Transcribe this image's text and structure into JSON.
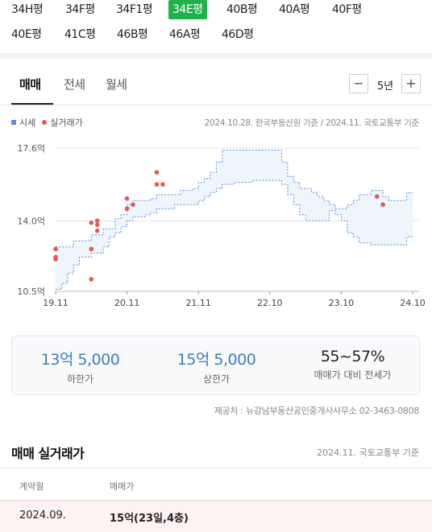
{
  "size_tabs": [
    "34H평",
    "34F평",
    "34F1평",
    "34E평",
    "40B평",
    "40A평",
    "40F평",
    "40E평",
    "41C평",
    "46B평",
    "46A평",
    "46D평"
  ],
  "active_size_tab": "34E평",
  "deal_tabs": [
    "매매",
    "전세",
    "월세"
  ],
  "active_deal_tab": "매매",
  "period": {
    "minus": "−",
    "label": "5년",
    "plus": "+"
  },
  "legend": {
    "lease": "시세",
    "trade": "실거래가"
  },
  "chart_source": "2024.10.28. 한국부동산원 기준 / 2024.11. 국토교통부 기준",
  "chart_data": {
    "type": "area",
    "title": "",
    "xlabel": "",
    "ylabel": "",
    "x_ticks": [
      "19.11",
      "20.11",
      "21.11",
      "22.10",
      "23.10",
      "24.10"
    ],
    "y_ticks": [
      "10.5억",
      "14.0억",
      "17.6억"
    ],
    "ylim": [
      10.5,
      17.6
    ],
    "xlim": [
      0,
      60
    ],
    "grid": true,
    "series": [
      {
        "name": "시세",
        "color": "#5b8dd6",
        "upper": [
          [
            0,
            12.7
          ],
          [
            3,
            12.7
          ],
          [
            3,
            13.0
          ],
          [
            6,
            13.0
          ],
          [
            6,
            13.3
          ],
          [
            8,
            13.3
          ],
          [
            8,
            13.6
          ],
          [
            10,
            13.6
          ],
          [
            10,
            14.1
          ],
          [
            11,
            14.1
          ],
          [
            11,
            14.3
          ],
          [
            12,
            14.3
          ],
          [
            12,
            14.8
          ],
          [
            13,
            14.8
          ],
          [
            13,
            15.0
          ],
          [
            16,
            15.0
          ],
          [
            16,
            15.1
          ],
          [
            17,
            15.1
          ],
          [
            17,
            15.3
          ],
          [
            21,
            15.3
          ],
          [
            21,
            15.5
          ],
          [
            23,
            15.5
          ],
          [
            23,
            15.6
          ],
          [
            24,
            15.6
          ],
          [
            24,
            15.9
          ],
          [
            25,
            15.9
          ],
          [
            25,
            16.1
          ],
          [
            26,
            16.1
          ],
          [
            26,
            16.4
          ],
          [
            27,
            16.4
          ],
          [
            27,
            16.9
          ],
          [
            28,
            16.9
          ],
          [
            28,
            17.5
          ],
          [
            38,
            17.5
          ],
          [
            38,
            16.9
          ],
          [
            39,
            16.9
          ],
          [
            39,
            16.2
          ],
          [
            40,
            16.2
          ],
          [
            40,
            15.9
          ],
          [
            41,
            15.9
          ],
          [
            41,
            15.6
          ],
          [
            43,
            15.6
          ],
          [
            43,
            15.4
          ],
          [
            44,
            15.4
          ],
          [
            44,
            15.2
          ],
          [
            45,
            15.2
          ],
          [
            45,
            15.0
          ],
          [
            46,
            15.0
          ],
          [
            46,
            14.8
          ],
          [
            47,
            14.8
          ],
          [
            47,
            14.6
          ],
          [
            49,
            14.6
          ],
          [
            49,
            14.8
          ],
          [
            50,
            14.8
          ],
          [
            50,
            15.0
          ],
          [
            51,
            15.0
          ],
          [
            51,
            15.3
          ],
          [
            53,
            15.3
          ],
          [
            53,
            15.5
          ],
          [
            55,
            15.5
          ],
          [
            55,
            15.2
          ],
          [
            56,
            15.2
          ],
          [
            56,
            15.0
          ],
          [
            59,
            15.0
          ],
          [
            59,
            15.4
          ],
          [
            60,
            15.4
          ]
        ],
        "lower": [
          [
            0,
            10.6
          ],
          [
            1,
            10.6
          ],
          [
            1,
            10.9
          ],
          [
            2,
            10.9
          ],
          [
            2,
            11.4
          ],
          [
            3,
            11.4
          ],
          [
            3,
            11.8
          ],
          [
            4,
            11.8
          ],
          [
            4,
            12.2
          ],
          [
            6,
            12.2
          ],
          [
            6,
            12.4
          ],
          [
            8,
            12.4
          ],
          [
            8,
            12.7
          ],
          [
            9,
            12.7
          ],
          [
            9,
            13.2
          ],
          [
            10,
            13.2
          ],
          [
            10,
            13.4
          ],
          [
            11,
            13.4
          ],
          [
            11,
            13.7
          ],
          [
            12,
            13.7
          ],
          [
            12,
            14.0
          ],
          [
            13,
            14.0
          ],
          [
            13,
            14.2
          ],
          [
            15,
            14.2
          ],
          [
            15,
            14.3
          ],
          [
            16,
            14.3
          ],
          [
            16,
            14.4
          ],
          [
            17,
            14.4
          ],
          [
            17,
            14.6
          ],
          [
            20,
            14.6
          ],
          [
            20,
            14.8
          ],
          [
            24,
            14.8
          ],
          [
            24,
            15.0
          ],
          [
            25,
            15.0
          ],
          [
            25,
            15.2
          ],
          [
            26,
            15.2
          ],
          [
            26,
            15.4
          ],
          [
            27,
            15.4
          ],
          [
            27,
            15.6
          ],
          [
            28,
            15.6
          ],
          [
            28,
            15.8
          ],
          [
            30,
            15.8
          ],
          [
            30,
            15.9
          ],
          [
            33,
            15.9
          ],
          [
            33,
            16.0
          ],
          [
            38,
            16.0
          ],
          [
            38,
            15.8
          ],
          [
            39,
            15.8
          ],
          [
            39,
            15.3
          ],
          [
            40,
            15.3
          ],
          [
            40,
            14.8
          ],
          [
            41,
            14.8
          ],
          [
            41,
            14.3
          ],
          [
            42,
            14.3
          ],
          [
            42,
            14.0
          ],
          [
            46,
            14.0
          ],
          [
            46,
            14.5
          ],
          [
            47,
            14.5
          ],
          [
            47,
            14.3
          ],
          [
            48,
            14.3
          ],
          [
            48,
            14.0
          ],
          [
            49,
            14.0
          ],
          [
            49,
            13.4
          ],
          [
            50,
            13.4
          ],
          [
            50,
            13.2
          ],
          [
            51,
            13.2
          ],
          [
            51,
            12.9
          ],
          [
            53,
            12.9
          ],
          [
            53,
            12.8
          ],
          [
            55,
            12.8
          ],
          [
            55,
            12.8
          ],
          [
            59,
            12.8
          ],
          [
            59,
            13.2
          ],
          [
            60,
            13.2
          ]
        ]
      },
      {
        "name": "실거래가",
        "color": "#e25858",
        "points": [
          [
            0,
            12.6
          ],
          [
            0,
            12.2
          ],
          [
            0,
            12.1
          ],
          [
            6,
            13.9
          ],
          [
            6,
            12.6
          ],
          [
            6,
            11.1
          ],
          [
            7,
            14.0
          ],
          [
            7,
            13.5
          ],
          [
            7,
            13.8
          ],
          [
            12,
            14.6
          ],
          [
            12,
            15.1
          ],
          [
            13,
            14.8
          ],
          [
            17,
            15.8
          ],
          [
            17,
            16.4
          ],
          [
            18,
            15.8
          ],
          [
            54,
            15.2
          ],
          [
            55,
            14.8
          ]
        ]
      }
    ]
  },
  "summary": {
    "low_value": "13억 5,000",
    "low_label": "하한가",
    "high_value": "15억 5,000",
    "high_label": "상한가",
    "ratio_value": "55~57%",
    "ratio_label": "매매가 대비 전세가"
  },
  "provider": "제공처 : 뉴강남부동산공인중개사사무소 02-3463-0808",
  "trade_list": {
    "title": "매매 실거래가",
    "source": "2024.11. 국토교통부 기준",
    "headers": {
      "date": "계약월",
      "price": "매매가"
    },
    "rows": [
      {
        "date": "2024.09.",
        "price": "15억(23일,4층)"
      }
    ]
  }
}
